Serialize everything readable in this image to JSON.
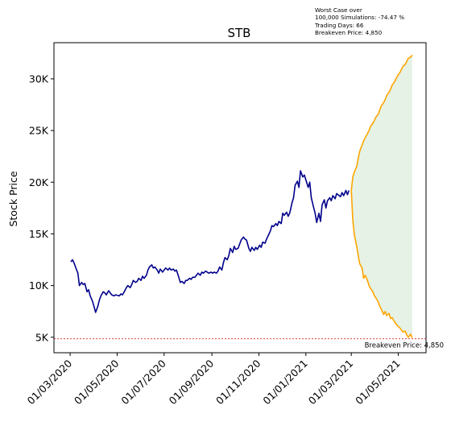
{
  "info": {
    "line1": "Worst Case over",
    "line2": "100,000 Simulations: -74.47 %",
    "line3": "Trading Days: 66",
    "line4": "Breakeven Price: 4,850"
  },
  "chart_data": {
    "type": "line",
    "title": "STB",
    "xlabel": "",
    "ylabel": "Stock Price",
    "x_ticks": [
      "01/03/2020",
      "01/05/2020",
      "01/07/2020",
      "01/09/2020",
      "01/11/2020",
      "01/01/2021",
      "01/03/2021",
      "01/05/2021"
    ],
    "y_ticks": [
      {
        "value": 5000,
        "label": "5K"
      },
      {
        "value": 10000,
        "label": "10K"
      },
      {
        "value": 15000,
        "label": "15K"
      },
      {
        "value": 20000,
        "label": "20K"
      },
      {
        "value": 25000,
        "label": "25K"
      },
      {
        "value": 30000,
        "label": "30K"
      }
    ],
    "xlim": [
      "2020-02-09",
      "2021-06-06"
    ],
    "ylim": [
      3500,
      33500
    ],
    "colors": {
      "history": "#00008b",
      "projection": "#ffa500",
      "band": "#e5f2e5",
      "breakeven": "#d62728"
    },
    "history": [
      [
        "2020-03-02",
        12300
      ],
      [
        "2020-03-04",
        12500
      ],
      [
        "2020-03-06",
        12200
      ],
      [
        "2020-03-09",
        11600
      ],
      [
        "2020-03-11",
        11200
      ],
      [
        "2020-03-13",
        10000
      ],
      [
        "2020-03-16",
        10300
      ],
      [
        "2020-03-18",
        10100
      ],
      [
        "2020-03-20",
        10200
      ],
      [
        "2020-03-23",
        9400
      ],
      [
        "2020-03-25",
        9600
      ],
      [
        "2020-03-27",
        9000
      ],
      [
        "2020-03-30",
        8500
      ],
      [
        "2020-04-01",
        8000
      ],
      [
        "2020-04-03",
        7400
      ],
      [
        "2020-04-06",
        8000
      ],
      [
        "2020-04-08",
        8600
      ],
      [
        "2020-04-10",
        9000
      ],
      [
        "2020-04-13",
        9400
      ],
      [
        "2020-04-15",
        9300
      ],
      [
        "2020-04-17",
        9100
      ],
      [
        "2020-04-20",
        9500
      ],
      [
        "2020-04-22",
        9300
      ],
      [
        "2020-04-24",
        9100
      ],
      [
        "2020-04-27",
        9000
      ],
      [
        "2020-04-29",
        9100
      ],
      [
        "2020-05-04",
        9000
      ],
      [
        "2020-05-06",
        9200
      ],
      [
        "2020-05-08",
        9100
      ],
      [
        "2020-05-11",
        9500
      ],
      [
        "2020-05-13",
        9800
      ],
      [
        "2020-05-15",
        10000
      ],
      [
        "2020-05-18",
        9800
      ],
      [
        "2020-05-20",
        10100
      ],
      [
        "2020-05-22",
        10500
      ],
      [
        "2020-05-25",
        10300
      ],
      [
        "2020-05-27",
        10400
      ],
      [
        "2020-05-29",
        10700
      ],
      [
        "2020-06-01",
        10500
      ],
      [
        "2020-06-03",
        10900
      ],
      [
        "2020-06-05",
        10700
      ],
      [
        "2020-06-08",
        11000
      ],
      [
        "2020-06-10",
        11500
      ],
      [
        "2020-06-12",
        11800
      ],
      [
        "2020-06-15",
        12000
      ],
      [
        "2020-06-17",
        11700
      ],
      [
        "2020-06-19",
        11800
      ],
      [
        "2020-06-22",
        11500
      ],
      [
        "2020-06-24",
        11200
      ],
      [
        "2020-06-26",
        11600
      ],
      [
        "2020-06-29",
        11300
      ],
      [
        "2020-07-01",
        11500
      ],
      [
        "2020-07-03",
        11700
      ],
      [
        "2020-07-06",
        11500
      ],
      [
        "2020-07-08",
        11700
      ],
      [
        "2020-07-10",
        11500
      ],
      [
        "2020-07-13",
        11600
      ],
      [
        "2020-07-15",
        11400
      ],
      [
        "2020-07-17",
        11500
      ],
      [
        "2020-07-20",
        10800
      ],
      [
        "2020-07-22",
        10300
      ],
      [
        "2020-07-24",
        10400
      ],
      [
        "2020-07-27",
        10200
      ],
      [
        "2020-07-29",
        10500
      ],
      [
        "2020-07-31",
        10500
      ],
      [
        "2020-08-03",
        10700
      ],
      [
        "2020-08-05",
        10600
      ],
      [
        "2020-08-07",
        10800
      ],
      [
        "2020-08-10",
        10800
      ],
      [
        "2020-08-12",
        11000
      ],
      [
        "2020-08-14",
        11200
      ],
      [
        "2020-08-17",
        11000
      ],
      [
        "2020-08-19",
        11300
      ],
      [
        "2020-08-21",
        11200
      ],
      [
        "2020-08-24",
        11400
      ],
      [
        "2020-08-26",
        11300
      ],
      [
        "2020-08-28",
        11200
      ],
      [
        "2020-08-31",
        11300
      ],
      [
        "2020-09-02",
        11200
      ],
      [
        "2020-09-04",
        11300
      ],
      [
        "2020-09-07",
        11200
      ],
      [
        "2020-09-09",
        11400
      ],
      [
        "2020-09-11",
        11800
      ],
      [
        "2020-09-14",
        11500
      ],
      [
        "2020-09-16",
        12200
      ],
      [
        "2020-09-18",
        12700
      ],
      [
        "2020-09-21",
        12500
      ],
      [
        "2020-09-23",
        12900
      ],
      [
        "2020-09-25",
        13600
      ],
      [
        "2020-09-28",
        13200
      ],
      [
        "2020-09-30",
        13800
      ],
      [
        "2020-10-02",
        13500
      ],
      [
        "2020-10-05",
        13600
      ],
      [
        "2020-10-07",
        14000
      ],
      [
        "2020-10-09",
        14400
      ],
      [
        "2020-10-12",
        14700
      ],
      [
        "2020-10-14",
        14500
      ],
      [
        "2020-10-16",
        14400
      ],
      [
        "2020-10-19",
        13600
      ],
      [
        "2020-10-21",
        13300
      ],
      [
        "2020-10-23",
        13700
      ],
      [
        "2020-10-26",
        13400
      ],
      [
        "2020-10-28",
        13700
      ],
      [
        "2020-10-30",
        13500
      ],
      [
        "2020-11-02",
        13900
      ],
      [
        "2020-11-04",
        13700
      ],
      [
        "2020-11-06",
        14200
      ],
      [
        "2020-11-09",
        14100
      ],
      [
        "2020-11-11",
        14500
      ],
      [
        "2020-11-13",
        14800
      ],
      [
        "2020-11-16",
        15300
      ],
      [
        "2020-11-18",
        15800
      ],
      [
        "2020-11-20",
        15700
      ],
      [
        "2020-11-23",
        16000
      ],
      [
        "2020-11-25",
        15800
      ],
      [
        "2020-11-27",
        16200
      ],
      [
        "2020-11-30",
        16000
      ],
      [
        "2020-12-02",
        17000
      ],
      [
        "2020-12-04",
        16800
      ],
      [
        "2020-12-07",
        17100
      ],
      [
        "2020-12-09",
        16700
      ],
      [
        "2020-12-11",
        17000
      ],
      [
        "2020-12-14",
        18000
      ],
      [
        "2020-12-16",
        18500
      ],
      [
        "2020-12-18",
        19700
      ],
      [
        "2020-12-21",
        20100
      ],
      [
        "2020-12-23",
        19500
      ],
      [
        "2020-12-25",
        21100
      ],
      [
        "2020-12-28",
        20500
      ],
      [
        "2020-12-30",
        20700
      ],
      [
        "2021-01-04",
        19500
      ],
      [
        "2021-01-06",
        20000
      ],
      [
        "2021-01-08",
        18500
      ],
      [
        "2021-01-11",
        17600
      ],
      [
        "2021-01-13",
        17000
      ],
      [
        "2021-01-15",
        16100
      ],
      [
        "2021-01-18",
        17000
      ],
      [
        "2021-01-20",
        16200
      ],
      [
        "2021-01-22",
        17800
      ],
      [
        "2021-01-25",
        18300
      ],
      [
        "2021-01-27",
        17500
      ],
      [
        "2021-01-29",
        18200
      ],
      [
        "2021-02-01",
        18500
      ],
      [
        "2021-02-03",
        18200
      ],
      [
        "2021-02-05",
        18700
      ],
      [
        "2021-02-08",
        18400
      ],
      [
        "2021-02-10",
        18900
      ],
      [
        "2021-02-15",
        18600
      ],
      [
        "2021-02-17",
        19000
      ],
      [
        "2021-02-19",
        18700
      ],
      [
        "2021-02-22",
        19200
      ],
      [
        "2021-02-24",
        18800
      ],
      [
        "2021-02-26",
        19200
      ]
    ],
    "projection_upper": [
      [
        "2021-03-01",
        19200
      ],
      [
        "2021-03-03",
        20500
      ],
      [
        "2021-03-05",
        21000
      ],
      [
        "2021-03-08",
        21500
      ],
      [
        "2021-03-10",
        22300
      ],
      [
        "2021-03-12",
        23000
      ],
      [
        "2021-03-15",
        23600
      ],
      [
        "2021-03-17",
        24000
      ],
      [
        "2021-03-19",
        24300
      ],
      [
        "2021-03-22",
        24700
      ],
      [
        "2021-03-24",
        25000
      ],
      [
        "2021-03-26",
        25400
      ],
      [
        "2021-03-29",
        25700
      ],
      [
        "2021-03-31",
        26000
      ],
      [
        "2021-04-02",
        26300
      ],
      [
        "2021-04-05",
        26600
      ],
      [
        "2021-04-07",
        27000
      ],
      [
        "2021-04-09",
        27400
      ],
      [
        "2021-04-12",
        27700
      ],
      [
        "2021-04-14",
        28000
      ],
      [
        "2021-04-16",
        28400
      ],
      [
        "2021-04-19",
        28700
      ],
      [
        "2021-04-21",
        29000
      ],
      [
        "2021-04-23",
        29400
      ],
      [
        "2021-04-26",
        29700
      ],
      [
        "2021-04-28",
        30000
      ],
      [
        "2021-04-30",
        30300
      ],
      [
        "2021-05-03",
        30600
      ],
      [
        "2021-05-05",
        30900
      ],
      [
        "2021-05-07",
        31200
      ],
      [
        "2021-05-10",
        31400
      ],
      [
        "2021-05-12",
        31700
      ],
      [
        "2021-05-14",
        32000
      ],
      [
        "2021-05-17",
        32100
      ],
      [
        "2021-05-19",
        32300
      ]
    ],
    "projection_lower": [
      [
        "2021-03-01",
        19200
      ],
      [
        "2021-03-03",
        16300
      ],
      [
        "2021-03-05",
        14900
      ],
      [
        "2021-03-08",
        13800
      ],
      [
        "2021-03-10",
        12900
      ],
      [
        "2021-03-12",
        12100
      ],
      [
        "2021-03-15",
        11700
      ],
      [
        "2021-03-17",
        10700
      ],
      [
        "2021-03-19",
        11000
      ],
      [
        "2021-03-22",
        10500
      ],
      [
        "2021-03-24",
        10000
      ],
      [
        "2021-03-26",
        9700
      ],
      [
        "2021-03-29",
        9400
      ],
      [
        "2021-03-31",
        9000
      ],
      [
        "2021-04-02",
        8800
      ],
      [
        "2021-04-05",
        8400
      ],
      [
        "2021-04-07",
        8000
      ],
      [
        "2021-04-09",
        7700
      ],
      [
        "2021-04-12",
        7200
      ],
      [
        "2021-04-14",
        7500
      ],
      [
        "2021-04-16",
        7100
      ],
      [
        "2021-04-19",
        7300
      ],
      [
        "2021-04-21",
        6800
      ],
      [
        "2021-04-23",
        6900
      ],
      [
        "2021-04-26",
        6500
      ],
      [
        "2021-04-28",
        6300
      ],
      [
        "2021-04-30",
        6100
      ],
      [
        "2021-05-03",
        5900
      ],
      [
        "2021-05-05",
        5700
      ],
      [
        "2021-05-07",
        5500
      ],
      [
        "2021-05-10",
        5600
      ],
      [
        "2021-05-12",
        5200
      ],
      [
        "2021-05-14",
        5000
      ],
      [
        "2021-05-17",
        5300
      ],
      [
        "2021-05-19",
        4950
      ]
    ],
    "breakeven": {
      "value": 4850,
      "label": "Breakeven Price: 4,850"
    }
  }
}
